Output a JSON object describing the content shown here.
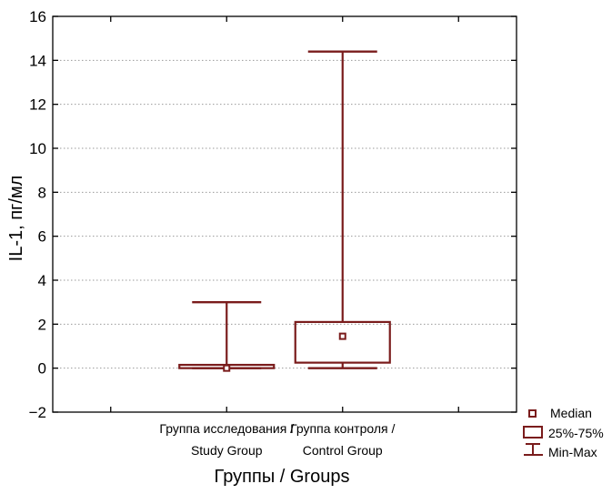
{
  "chart_data": {
    "type": "boxplot",
    "xlabel": "Группы / Groups",
    "ylabel": "IL-1, пг/мл",
    "ylim": [
      -2,
      16
    ],
    "yticks": [
      -2,
      0,
      2,
      4,
      6,
      8,
      10,
      12,
      14,
      16
    ],
    "grid": true,
    "legend_position": "bottom-right",
    "color": "#7a1c1c",
    "categories": [
      {
        "line1": "Группа исследования /",
        "line2": "Study Group"
      },
      {
        "line1": "Группа контроля /",
        "line2": "Control Group"
      }
    ],
    "groups": [
      {
        "min": 0.0,
        "q1": 0.0,
        "median": 0.0,
        "q3": 0.15,
        "max": 3.0
      },
      {
        "min": 0.0,
        "q1": 0.25,
        "median": 1.45,
        "q3": 2.1,
        "max": 14.4
      }
    ],
    "legend": {
      "median": "Median",
      "iqr": "25%-75%",
      "range": "Min-Max"
    }
  }
}
